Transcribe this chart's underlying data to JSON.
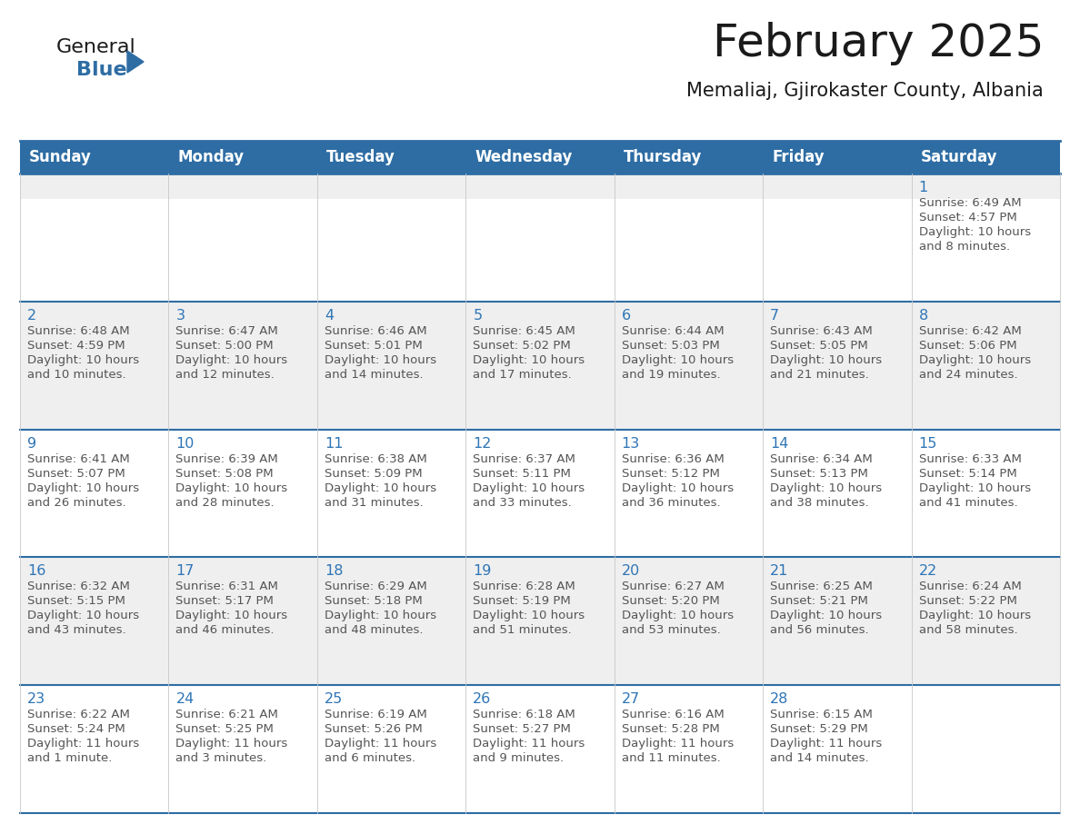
{
  "title": "February 2025",
  "subtitle": "Memaliaj, Gjirokaster County, Albania",
  "days_of_week": [
    "Sunday",
    "Monday",
    "Tuesday",
    "Wednesday",
    "Thursday",
    "Friday",
    "Saturday"
  ],
  "header_bg": "#2E6DA4",
  "header_text": "#FFFFFF",
  "cell_bg_light": "#EFEFEF",
  "cell_bg_white": "#FFFFFF",
  "grid_line_color": "#2E6DA4",
  "day_number_color": "#2E75B6",
  "info_text_color": "#555555",
  "title_color": "#1a1a1a",
  "subtitle_color": "#1a1a1a",
  "logo_general_color": "#1a1a1a",
  "logo_blue_color": "#2E6DA4",
  "calendar_data": [
    {
      "day": 1,
      "col": 6,
      "row": 0,
      "sunrise": "6:49 AM",
      "sunset": "4:57 PM",
      "daylight_line1": "Daylight: 10 hours",
      "daylight_line2": "and 8 minutes."
    },
    {
      "day": 2,
      "col": 0,
      "row": 1,
      "sunrise": "6:48 AM",
      "sunset": "4:59 PM",
      "daylight_line1": "Daylight: 10 hours",
      "daylight_line2": "and 10 minutes."
    },
    {
      "day": 3,
      "col": 1,
      "row": 1,
      "sunrise": "6:47 AM",
      "sunset": "5:00 PM",
      "daylight_line1": "Daylight: 10 hours",
      "daylight_line2": "and 12 minutes."
    },
    {
      "day": 4,
      "col": 2,
      "row": 1,
      "sunrise": "6:46 AM",
      "sunset": "5:01 PM",
      "daylight_line1": "Daylight: 10 hours",
      "daylight_line2": "and 14 minutes."
    },
    {
      "day": 5,
      "col": 3,
      "row": 1,
      "sunrise": "6:45 AM",
      "sunset": "5:02 PM",
      "daylight_line1": "Daylight: 10 hours",
      "daylight_line2": "and 17 minutes."
    },
    {
      "day": 6,
      "col": 4,
      "row": 1,
      "sunrise": "6:44 AM",
      "sunset": "5:03 PM",
      "daylight_line1": "Daylight: 10 hours",
      "daylight_line2": "and 19 minutes."
    },
    {
      "day": 7,
      "col": 5,
      "row": 1,
      "sunrise": "6:43 AM",
      "sunset": "5:05 PM",
      "daylight_line1": "Daylight: 10 hours",
      "daylight_line2": "and 21 minutes."
    },
    {
      "day": 8,
      "col": 6,
      "row": 1,
      "sunrise": "6:42 AM",
      "sunset": "5:06 PM",
      "daylight_line1": "Daylight: 10 hours",
      "daylight_line2": "and 24 minutes."
    },
    {
      "day": 9,
      "col": 0,
      "row": 2,
      "sunrise": "6:41 AM",
      "sunset": "5:07 PM",
      "daylight_line1": "Daylight: 10 hours",
      "daylight_line2": "and 26 minutes."
    },
    {
      "day": 10,
      "col": 1,
      "row": 2,
      "sunrise": "6:39 AM",
      "sunset": "5:08 PM",
      "daylight_line1": "Daylight: 10 hours",
      "daylight_line2": "and 28 minutes."
    },
    {
      "day": 11,
      "col": 2,
      "row": 2,
      "sunrise": "6:38 AM",
      "sunset": "5:09 PM",
      "daylight_line1": "Daylight: 10 hours",
      "daylight_line2": "and 31 minutes."
    },
    {
      "day": 12,
      "col": 3,
      "row": 2,
      "sunrise": "6:37 AM",
      "sunset": "5:11 PM",
      "daylight_line1": "Daylight: 10 hours",
      "daylight_line2": "and 33 minutes."
    },
    {
      "day": 13,
      "col": 4,
      "row": 2,
      "sunrise": "6:36 AM",
      "sunset": "5:12 PM",
      "daylight_line1": "Daylight: 10 hours",
      "daylight_line2": "and 36 minutes."
    },
    {
      "day": 14,
      "col": 5,
      "row": 2,
      "sunrise": "6:34 AM",
      "sunset": "5:13 PM",
      "daylight_line1": "Daylight: 10 hours",
      "daylight_line2": "and 38 minutes."
    },
    {
      "day": 15,
      "col": 6,
      "row": 2,
      "sunrise": "6:33 AM",
      "sunset": "5:14 PM",
      "daylight_line1": "Daylight: 10 hours",
      "daylight_line2": "and 41 minutes."
    },
    {
      "day": 16,
      "col": 0,
      "row": 3,
      "sunrise": "6:32 AM",
      "sunset": "5:15 PM",
      "daylight_line1": "Daylight: 10 hours",
      "daylight_line2": "and 43 minutes."
    },
    {
      "day": 17,
      "col": 1,
      "row": 3,
      "sunrise": "6:31 AM",
      "sunset": "5:17 PM",
      "daylight_line1": "Daylight: 10 hours",
      "daylight_line2": "and 46 minutes."
    },
    {
      "day": 18,
      "col": 2,
      "row": 3,
      "sunrise": "6:29 AM",
      "sunset": "5:18 PM",
      "daylight_line1": "Daylight: 10 hours",
      "daylight_line2": "and 48 minutes."
    },
    {
      "day": 19,
      "col": 3,
      "row": 3,
      "sunrise": "6:28 AM",
      "sunset": "5:19 PM",
      "daylight_line1": "Daylight: 10 hours",
      "daylight_line2": "and 51 minutes."
    },
    {
      "day": 20,
      "col": 4,
      "row": 3,
      "sunrise": "6:27 AM",
      "sunset": "5:20 PM",
      "daylight_line1": "Daylight: 10 hours",
      "daylight_line2": "and 53 minutes."
    },
    {
      "day": 21,
      "col": 5,
      "row": 3,
      "sunrise": "6:25 AM",
      "sunset": "5:21 PM",
      "daylight_line1": "Daylight: 10 hours",
      "daylight_line2": "and 56 minutes."
    },
    {
      "day": 22,
      "col": 6,
      "row": 3,
      "sunrise": "6:24 AM",
      "sunset": "5:22 PM",
      "daylight_line1": "Daylight: 10 hours",
      "daylight_line2": "and 58 minutes."
    },
    {
      "day": 23,
      "col": 0,
      "row": 4,
      "sunrise": "6:22 AM",
      "sunset": "5:24 PM",
      "daylight_line1": "Daylight: 11 hours",
      "daylight_line2": "and 1 minute."
    },
    {
      "day": 24,
      "col": 1,
      "row": 4,
      "sunrise": "6:21 AM",
      "sunset": "5:25 PM",
      "daylight_line1": "Daylight: 11 hours",
      "daylight_line2": "and 3 minutes."
    },
    {
      "day": 25,
      "col": 2,
      "row": 4,
      "sunrise": "6:19 AM",
      "sunset": "5:26 PM",
      "daylight_line1": "Daylight: 11 hours",
      "daylight_line2": "and 6 minutes."
    },
    {
      "day": 26,
      "col": 3,
      "row": 4,
      "sunrise": "6:18 AM",
      "sunset": "5:27 PM",
      "daylight_line1": "Daylight: 11 hours",
      "daylight_line2": "and 9 minutes."
    },
    {
      "day": 27,
      "col": 4,
      "row": 4,
      "sunrise": "6:16 AM",
      "sunset": "5:28 PM",
      "daylight_line1": "Daylight: 11 hours",
      "daylight_line2": "and 11 minutes."
    },
    {
      "day": 28,
      "col": 5,
      "row": 4,
      "sunrise": "6:15 AM",
      "sunset": "5:29 PM",
      "daylight_line1": "Daylight: 11 hours",
      "daylight_line2": "and 14 minutes."
    }
  ],
  "num_rows": 5,
  "num_cols": 7
}
